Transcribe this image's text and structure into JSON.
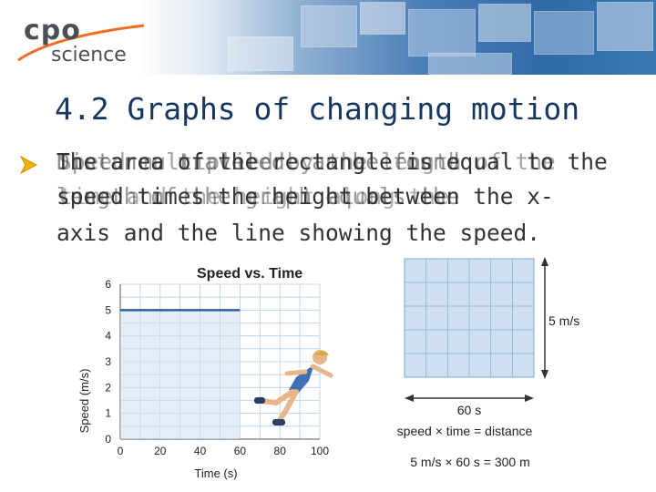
{
  "header": {
    "logo_top": "cpo",
    "logo_bottom": "science",
    "brand_accent": "#f26c21",
    "banner_color": "#3c78b5"
  },
  "slide": {
    "title": "4.2 Graphs of changing motion",
    "bullet_icon": "arrow-bullet-icon",
    "body_visible": {
      "line1": "The area of the rectangle is equal to the",
      "line2": "speed times the height between the x-",
      "line3": "axis and the line showing the speed."
    },
    "body_overlay": {
      "line1a": "Distance traveled can be found",
      "line1b": "Speed multiplied by the length of the",
      "line2a": "length of the graph equals the",
      "line2b": "time and the height along the"
    }
  },
  "chart_data": {
    "type": "line",
    "title": "Speed vs. Time",
    "xlabel": "Time (s)",
    "ylabel": "Speed (m/s)",
    "x_ticks": [
      "0",
      "20",
      "40",
      "60",
      "80",
      "100"
    ],
    "y_ticks": [
      "0",
      "1",
      "2",
      "3",
      "4",
      "5",
      "6"
    ],
    "xlim": [
      0,
      100
    ],
    "ylim": [
      0,
      6
    ],
    "grid": true,
    "series": [
      {
        "x": [
          0,
          60
        ],
        "y": [
          5,
          5
        ]
      }
    ],
    "line_color": "#2e5fa0",
    "shaded_region_color": "#cfe0f2"
  },
  "area_diagram": {
    "height_label": "5 m/s",
    "width_label": "60 s",
    "formula": "speed × time = distance",
    "calculation": "5 m/s × 60 s = 300 m"
  }
}
